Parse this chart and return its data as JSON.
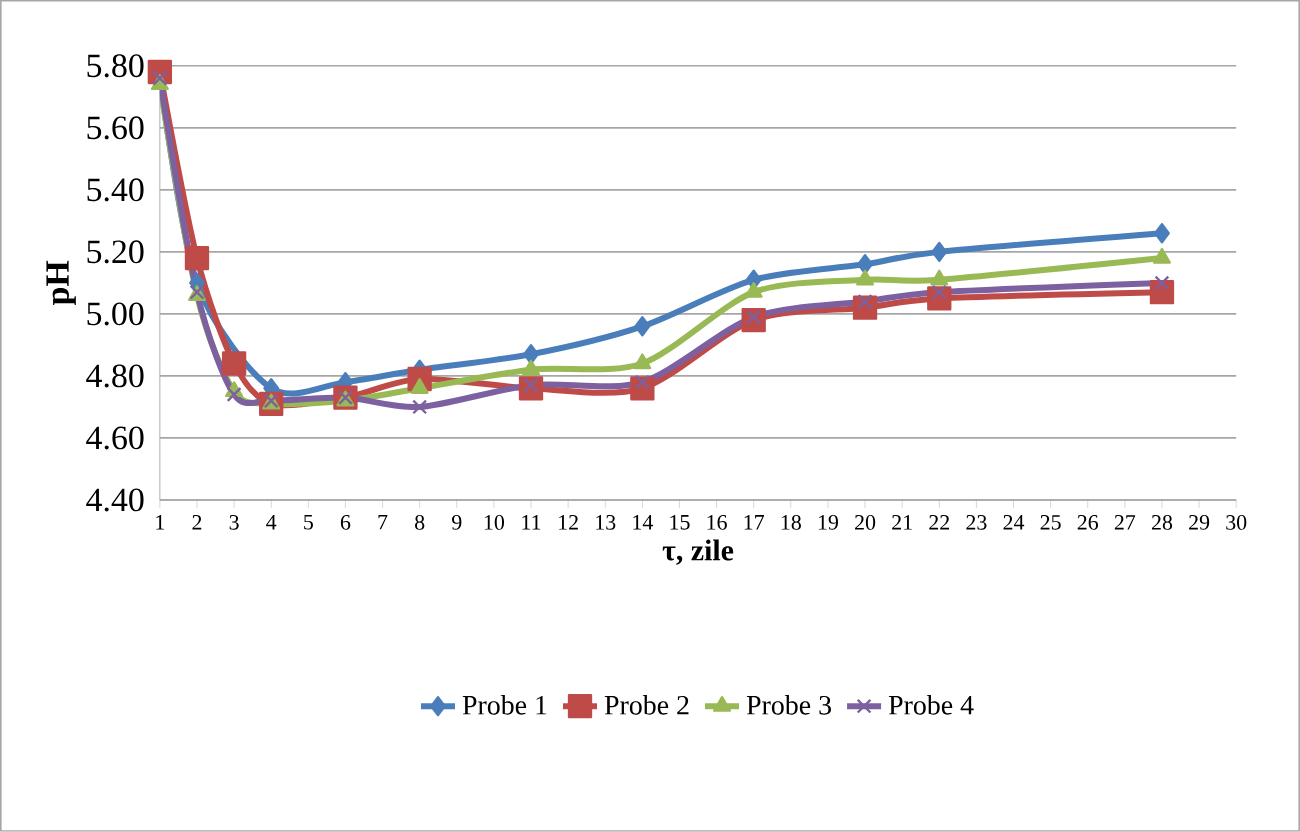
{
  "chart_data": {
    "type": "line",
    "xlabel": "τ, zile",
    "ylabel": "pH",
    "x": [
      1,
      2,
      3,
      4,
      6,
      8,
      11,
      14,
      17,
      20,
      22,
      28
    ],
    "xlim": [
      1,
      30
    ],
    "xticks": [
      1,
      2,
      3,
      4,
      5,
      6,
      7,
      8,
      9,
      10,
      11,
      12,
      13,
      14,
      15,
      16,
      17,
      18,
      19,
      20,
      21,
      22,
      23,
      24,
      25,
      26,
      27,
      28,
      29,
      30
    ],
    "ylim": [
      4.4,
      5.8
    ],
    "yticks": [
      {
        "value": 4.4,
        "label": "4.40"
      },
      {
        "value": 4.6,
        "label": "4.60"
      },
      {
        "value": 4.8,
        "label": "4.80"
      },
      {
        "value": 5.0,
        "label": "5.00"
      },
      {
        "value": 5.2,
        "label": "5.20"
      },
      {
        "value": 5.4,
        "label": "5.40"
      },
      {
        "value": 5.6,
        "label": "5.60"
      },
      {
        "value": 5.8,
        "label": "5.80"
      }
    ],
    "grid": "y",
    "legend": "bottom",
    "series": [
      {
        "name": "Probe 1",
        "color": "#4a7ebb",
        "marker": "diamond",
        "values": [
          5.76,
          5.1,
          null,
          4.76,
          4.78,
          4.82,
          4.87,
          4.96,
          5.11,
          5.16,
          5.2,
          5.26
        ]
      },
      {
        "name": "Probe 2",
        "color": "#be4b48",
        "marker": "square",
        "values": [
          5.78,
          5.18,
          4.84,
          4.71,
          4.73,
          4.79,
          4.76,
          4.76,
          4.98,
          5.02,
          5.05,
          5.07
        ]
      },
      {
        "name": "Probe 3",
        "color": "#98b954",
        "marker": "triangle",
        "values": [
          5.74,
          5.06,
          4.75,
          4.71,
          4.72,
          4.76,
          4.82,
          4.84,
          5.07,
          5.11,
          5.11,
          5.18
        ]
      },
      {
        "name": "Probe 4",
        "color": "#7d60a0",
        "marker": "cross",
        "values": [
          5.76,
          5.07,
          4.74,
          4.72,
          4.73,
          4.7,
          4.77,
          4.78,
          4.99,
          5.04,
          5.07,
          5.1
        ]
      }
    ]
  }
}
